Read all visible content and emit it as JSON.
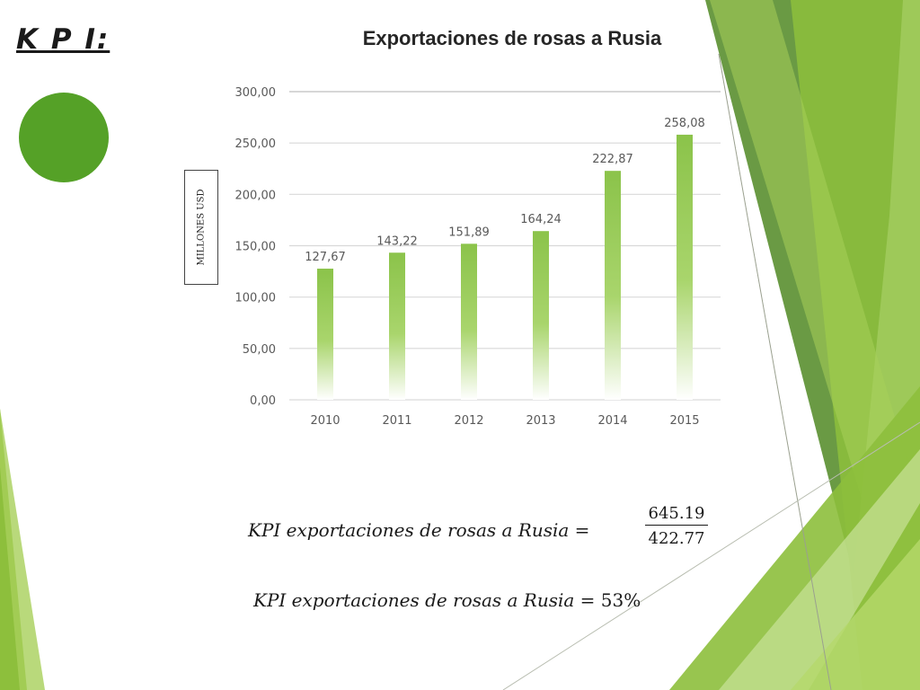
{
  "slide": {
    "title": "K P I:",
    "accent_color": "#55a127",
    "decor_colors": [
      "#6a9a44",
      "#8dbf3c",
      "#a8cf5a",
      "#c9e29a"
    ]
  },
  "chart_data": {
    "type": "bar",
    "title": "Exportaciones de rosas a Rusia",
    "ylabel": "MILLONES USD",
    "xlabel": "",
    "categories": [
      "2010",
      "2011",
      "2012",
      "2013",
      "2014",
      "2015"
    ],
    "values": [
      127.67,
      143.22,
      151.89,
      164.24,
      222.87,
      258.08
    ],
    "data_labels": [
      "127,67",
      "143,22",
      "151,89",
      "164,24",
      "222,87",
      "258,08"
    ],
    "ylim": [
      0,
      300
    ],
    "yticks": [
      0,
      50,
      100,
      150,
      200,
      250,
      300
    ],
    "ytick_labels": [
      "0,00",
      "50,00",
      "100,00",
      "150,00",
      "200,00",
      "250,00",
      "300,00"
    ],
    "grid": true,
    "bar_color": "#8bc34a"
  },
  "formulas": {
    "line1_text": "KPI exportaciones de rosas a Rusia =",
    "numerator": "645.19",
    "denominator": "422.77",
    "line2_text": "KPI exportaciones de rosas a Rusia = ",
    "line2_result": "53%"
  }
}
